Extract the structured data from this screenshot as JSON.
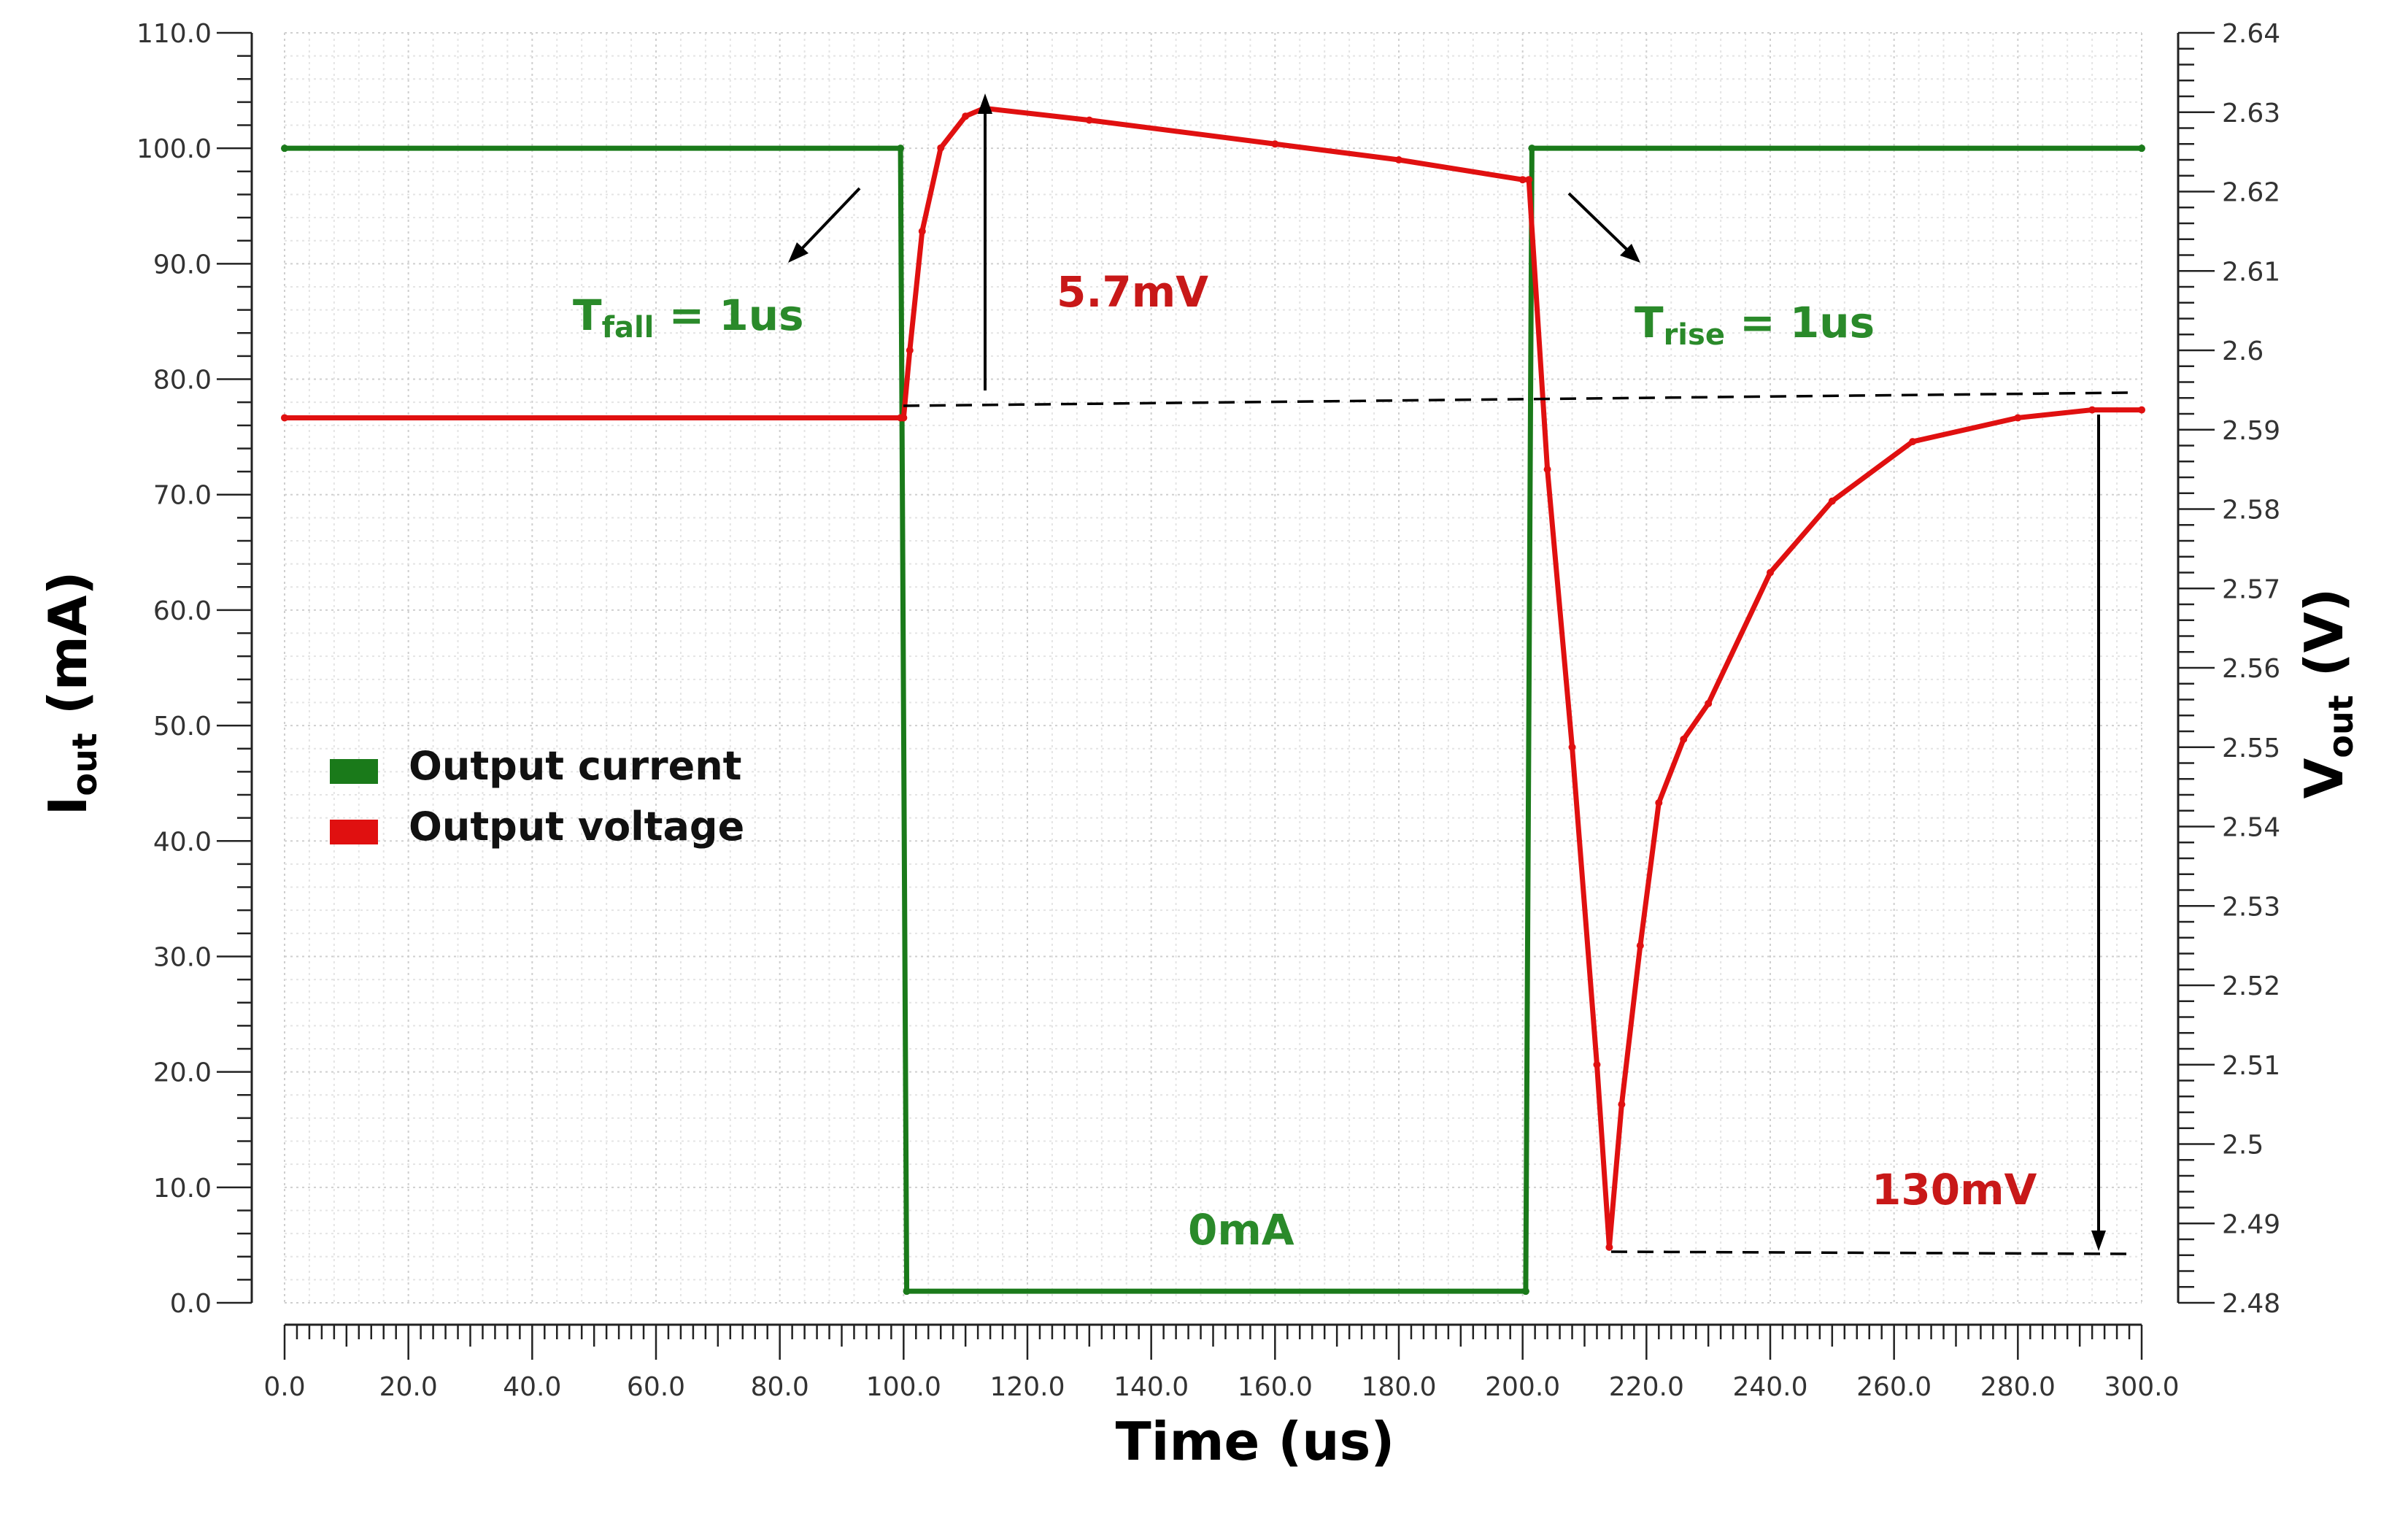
{
  "chart_data": {
    "type": "line",
    "title": "",
    "xlabel": "Time (us)",
    "ylabel": {
      "main": "I",
      "sub": "out",
      "unit": " (mA)"
    },
    "y2label": {
      "main": "V",
      "sub": "out",
      "unit": " (V)"
    },
    "xlim": [
      0,
      300
    ],
    "ylim": [
      0,
      110
    ],
    "y2lim": [
      2.48,
      2.64
    ],
    "x_ticks": [
      "0.0",
      "20.0",
      "40.0",
      "60.0",
      "80.0",
      "100.0",
      "120.0",
      "140.0",
      "160.0",
      "180.0",
      "200.0",
      "220.0",
      "240.0",
      "260.0",
      "280.0",
      "300.0"
    ],
    "y_ticks": [
      "0.0",
      "10.0",
      "20.0",
      "30.0",
      "40.0",
      "50.0",
      "60.0",
      "70.0",
      "80.0",
      "90.0",
      "100.0",
      "110.0"
    ],
    "y2_ticks": [
      "2.48",
      "2.49",
      "2.5",
      "2.51",
      "2.52",
      "2.53",
      "2.54",
      "2.55",
      "2.56",
      "2.57",
      "2.58",
      "2.59",
      "2.6",
      "2.61",
      "2.62",
      "2.63",
      "2.64"
    ],
    "grid": true,
    "legend_position": "left-middle",
    "series": [
      {
        "name": "Output current",
        "axis": "left",
        "color": "#1a7a1a",
        "x": [
          0,
          99.5,
          100.5,
          200.5,
          201.5,
          300
        ],
        "y": [
          100,
          100,
          1,
          1,
          100,
          100
        ]
      },
      {
        "name": "Output voltage",
        "axis": "right",
        "color": "#e01010",
        "x": [
          0,
          99.5,
          100,
          101,
          103,
          106,
          110,
          113,
          130,
          160,
          180,
          200,
          201,
          204,
          208,
          212,
          214,
          216,
          219,
          222,
          226,
          230,
          240,
          250,
          263,
          280,
          292,
          300
        ],
        "y": [
          2.5915,
          2.5915,
          2.5915,
          2.6,
          2.615,
          2.6255,
          2.6295,
          2.6305,
          2.629,
          2.626,
          2.624,
          2.6215,
          2.6215,
          2.585,
          2.55,
          2.51,
          2.487,
          2.505,
          2.525,
          2.543,
          2.551,
          2.5555,
          2.572,
          2.581,
          2.5885,
          2.5915,
          2.5925,
          2.5925
        ]
      }
    ],
    "annotations": {
      "tfall": {
        "main": "T",
        "sub": "fall",
        "rest": " = 1us"
      },
      "trise": {
        "main": "T",
        "sub": "rise",
        "rest": " = 1us"
      },
      "overshoot": "5.7mV",
      "undershoot": "130mV",
      "zero_current": "0mA"
    }
  }
}
